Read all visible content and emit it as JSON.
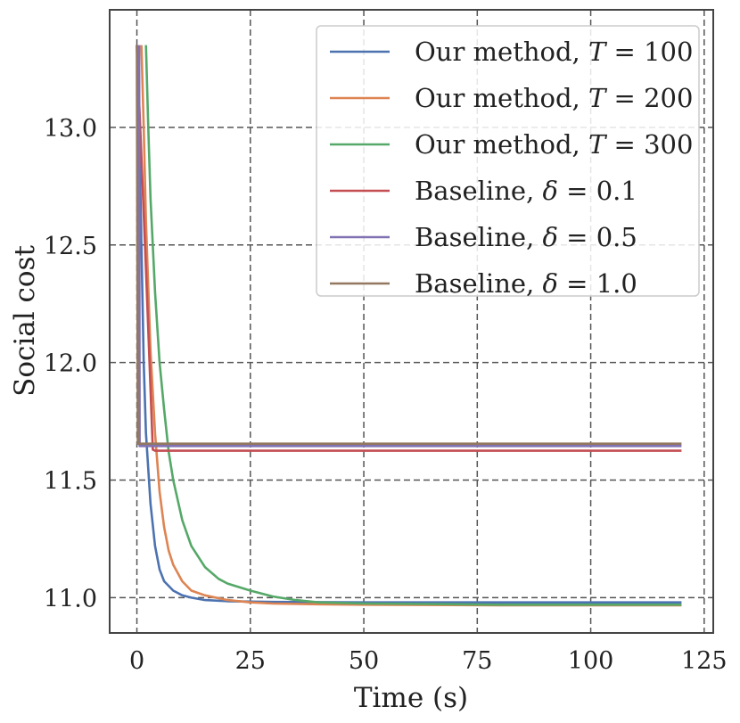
{
  "chart_data": {
    "type": "line",
    "xlabel": "Time (s)",
    "ylabel": "Social cost",
    "xlim": [
      -6,
      127
    ],
    "ylim": [
      10.85,
      13.5
    ],
    "xticks": [
      0,
      25,
      50,
      75,
      100,
      125
    ],
    "xtick_labels": [
      "0",
      "25",
      "50",
      "75",
      "100",
      "125"
    ],
    "yticks": [
      11.0,
      11.5,
      12.0,
      12.5,
      13.0
    ],
    "ytick_labels": [
      "11.0",
      "11.5",
      "12.0",
      "12.5",
      "13.0"
    ],
    "grid": true,
    "legend_position": "upper right",
    "series": [
      {
        "name": "Our method, T = 100",
        "name_parts": [
          "Our method, ",
          "T",
          " = 100"
        ],
        "color": "#4c72b0",
        "x": [
          0,
          0.5,
          1,
          1.5,
          2,
          3,
          4,
          5,
          6,
          8,
          10,
          12,
          15,
          20,
          30,
          50,
          80,
          120
        ],
        "y": [
          13.35,
          13.0,
          12.5,
          12.0,
          11.7,
          11.4,
          11.22,
          11.12,
          11.07,
          11.03,
          11.01,
          11.0,
          10.99,
          10.985,
          10.982,
          10.98,
          10.98,
          10.98
        ]
      },
      {
        "name": "Our method, T = 200",
        "name_parts": [
          "Our method, ",
          "T",
          " = 200"
        ],
        "color": "#dd8452",
        "x": [
          1,
          1.5,
          2,
          3,
          4,
          5,
          6,
          7,
          8,
          10,
          12,
          15,
          20,
          25,
          30,
          40,
          50,
          80,
          120
        ],
        "y": [
          13.35,
          13.0,
          12.6,
          12.05,
          11.7,
          11.45,
          11.3,
          11.2,
          11.14,
          11.07,
          11.03,
          11.01,
          10.99,
          10.98,
          10.975,
          10.972,
          10.97,
          10.968,
          10.968
        ]
      },
      {
        "name": "Our method, T = 300",
        "name_parts": [
          "Our method, ",
          "T",
          " = 300"
        ],
        "color": "#55a868",
        "x": [
          2,
          2.5,
          3,
          4,
          5,
          6,
          7,
          8,
          10,
          12,
          15,
          18,
          20,
          25,
          30,
          35,
          40,
          50,
          80,
          120
        ],
        "y": [
          13.35,
          13.0,
          12.7,
          12.3,
          12.0,
          11.8,
          11.62,
          11.5,
          11.33,
          11.22,
          11.13,
          11.08,
          11.06,
          11.03,
          11.005,
          10.99,
          10.98,
          10.975,
          10.97,
          10.97
        ]
      },
      {
        "name": "Baseline, δ = 0.1",
        "name_parts": [
          "Baseline, ",
          "δ",
          " = 0.1"
        ],
        "color": "#c44e52",
        "x": [
          0,
          2,
          3.5,
          4,
          120
        ],
        "y": [
          13.35,
          12.4,
          11.63,
          11.625,
          11.625
        ]
      },
      {
        "name": "Baseline, δ = 0.5",
        "name_parts": [
          "Baseline, ",
          "δ",
          " = 0.5"
        ],
        "color": "#8172b3",
        "x": [
          0.5,
          0.6,
          120
        ],
        "y": [
          13.35,
          11.645,
          11.645
        ]
      },
      {
        "name": "Baseline, δ = 1.0",
        "name_parts": [
          "Baseline, ",
          "δ",
          " = 1.0"
        ],
        "color": "#937860",
        "x": [
          0,
          0.2,
          120
        ],
        "y": [
          13.35,
          11.655,
          11.655
        ]
      }
    ]
  }
}
